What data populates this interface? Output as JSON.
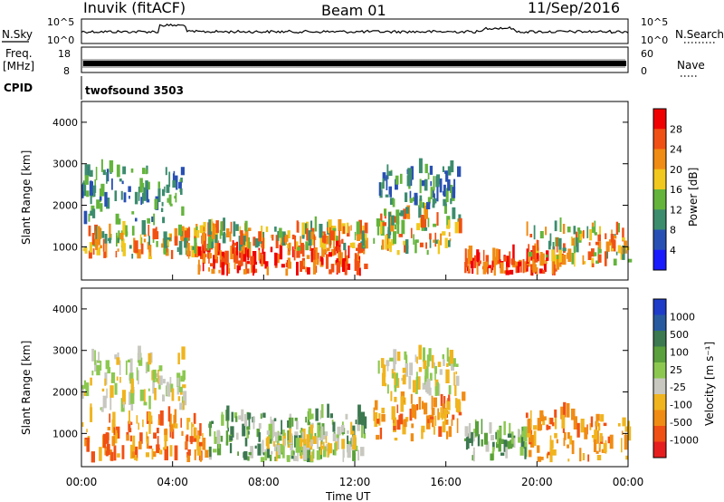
{
  "header": {
    "station": "Inuvik (fitACF)",
    "beam": "Beam 01",
    "date": "11/Sep/2016"
  },
  "strip_labels": {
    "nsky": "N.Sky",
    "nsky_ticks": [
      "10^5",
      "10^0"
    ],
    "nsearch": "N.Search",
    "nsearch_ticks": [
      "10^5",
      "10^0"
    ],
    "freq": "Freq.",
    "freq_unit": "[MHz]",
    "freq_ticks": [
      "18",
      "8"
    ],
    "nave": "Nave",
    "nave_ticks": [
      "60",
      "0"
    ],
    "cpid": "CPID",
    "cpid_value": "twofsound 3503"
  },
  "chart_data": [
    {
      "type": "heatmap",
      "name": "power",
      "ylabel": "Slant Range [km]",
      "ylim": [
        200,
        4500
      ],
      "y_ticks": [
        1000,
        2000,
        3000,
        4000
      ],
      "colorbar_label": "Power [dB]",
      "colorbar_ticks": [
        "4",
        "8",
        "12",
        "16",
        "20",
        "24",
        "28"
      ],
      "colors": [
        "#1a1aff",
        "#2850b4",
        "#3c8c6e",
        "#64b43c",
        "#f0c81e",
        "#f08c14",
        "#f05014",
        "#f00000"
      ],
      "range_min": 0,
      "range_max": 32
    },
    {
      "type": "heatmap",
      "name": "velocity",
      "ylabel": "Slant Range [km]",
      "ylim": [
        200,
        4500
      ],
      "y_ticks": [
        1000,
        2000,
        3000,
        4000
      ],
      "colorbar_label": "Velocity [m s⁻¹]",
      "colorbar_ticks": [
        "1000",
        "500",
        "100",
        "25",
        "-25",
        "-100",
        "-500",
        "-1000"
      ],
      "colors": [
        "#1e3cc8",
        "#285aa0",
        "#3c7850",
        "#5aa03c",
        "#8cc850",
        "#c8c8c0",
        "#f0b41e",
        "#f08c14",
        "#f05014",
        "#e61e1e"
      ],
      "x_ticks": [
        "00:00",
        "04:00",
        "08:00",
        "12:00",
        "16:00",
        "20:00",
        "00:00"
      ],
      "xlabel": "Time UT",
      "echo_regions": [
        {
          "t0": 0.0,
          "t1": 5.5,
          "r0": 300,
          "r1": 1300,
          "kind": "neg"
        },
        {
          "t0": 0.0,
          "t1": 4.5,
          "r0": 1500,
          "r1": 2800,
          "kind": "low"
        },
        {
          "t0": 5.5,
          "t1": 12.5,
          "r0": 300,
          "r1": 1400,
          "kind": "pos"
        },
        {
          "t0": 8.0,
          "t1": 12.0,
          "r0": 300,
          "r1": 1000,
          "kind": "low"
        },
        {
          "t0": 12.8,
          "t1": 16.7,
          "r0": 800,
          "r1": 1800,
          "kind": "neg"
        },
        {
          "t0": 13.0,
          "t1": 16.5,
          "r0": 1900,
          "r1": 2800,
          "kind": "low"
        },
        {
          "t0": 16.8,
          "t1": 19.5,
          "r0": 300,
          "r1": 1000,
          "kind": "pos"
        },
        {
          "t0": 19.5,
          "t1": 24.0,
          "r0": 300,
          "r1": 1400,
          "kind": "neg"
        }
      ]
    }
  ],
  "power_regions": [
    {
      "t0": 0.0,
      "t1": 5.5,
      "r0": 700,
      "r1": 1300,
      "kind": "mid"
    },
    {
      "t0": 0.0,
      "t1": 4.5,
      "r0": 1500,
      "r1": 2800,
      "kind": "low"
    },
    {
      "t0": 5.0,
      "t1": 12.5,
      "r0": 300,
      "r1": 900,
      "kind": "high"
    },
    {
      "t0": 5.0,
      "t1": 12.5,
      "r0": 900,
      "r1": 1400,
      "kind": "mid"
    },
    {
      "t0": 12.8,
      "t1": 16.7,
      "r0": 800,
      "r1": 1800,
      "kind": "mid"
    },
    {
      "t0": 13.0,
      "t1": 16.5,
      "r0": 1900,
      "r1": 2800,
      "kind": "low"
    },
    {
      "t0": 16.8,
      "t1": 21.0,
      "r0": 300,
      "r1": 700,
      "kind": "high"
    },
    {
      "t0": 19.5,
      "t1": 24.0,
      "r0": 500,
      "r1": 1400,
      "kind": "mid"
    }
  ]
}
